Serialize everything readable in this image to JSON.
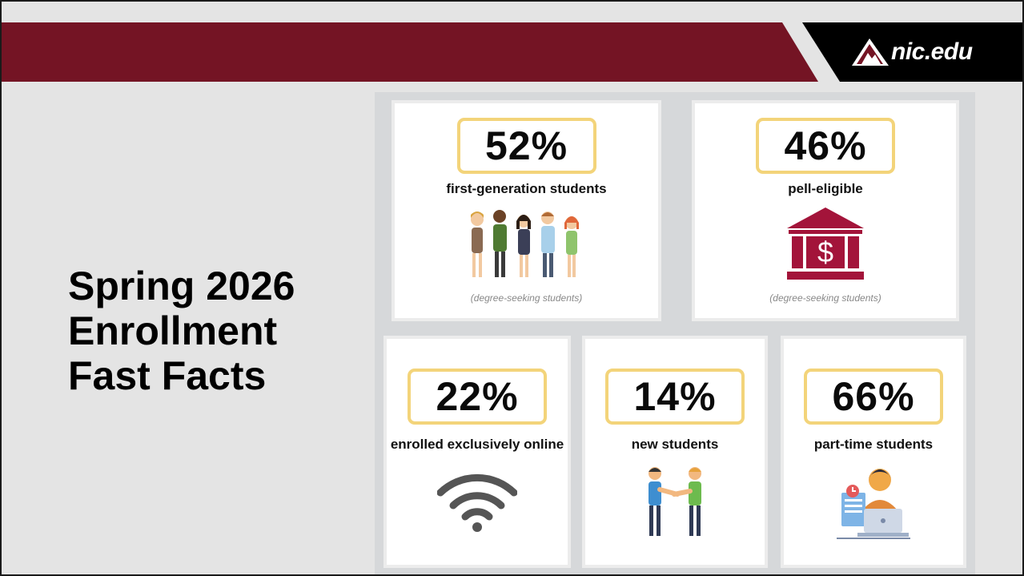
{
  "header": {
    "logo_text": "nic.edu",
    "logo_icon": "mountain-logo-icon",
    "banner_color": "#741424"
  },
  "title": {
    "line1": "Spring 2026",
    "line2": "Enrollment",
    "line3": "Fast Facts"
  },
  "facts": {
    "first_generation": {
      "value": "52%",
      "label": "first-generation students",
      "note": "(degree-seeking students)",
      "icon": "students-group-icon"
    },
    "pell_eligible": {
      "value": "46%",
      "label": "pell-eligible",
      "note": "(degree-seeking students)",
      "icon": "bank-dollar-icon"
    },
    "online": {
      "value": "22%",
      "label": "enrolled exclusively online",
      "icon": "wifi-icon"
    },
    "new_students": {
      "value": "14%",
      "label": "new students",
      "icon": "handshake-icon"
    },
    "part_time": {
      "value": "66%",
      "label": "part-time students",
      "icon": "laptop-student-icon"
    }
  },
  "colors": {
    "highlight_border": "#f3d47a",
    "bank_red": "#a3143a",
    "wifi_gray": "#555555"
  }
}
